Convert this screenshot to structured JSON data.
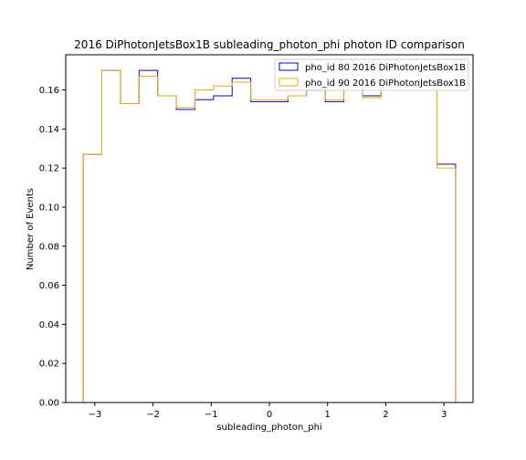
{
  "chart_data": {
    "type": "step-histogram",
    "title": "2016 DiPhotonJetsBox1B subleading_photon_phi photon ID comparison",
    "xlabel": "subleading_photon_phi",
    "ylabel": "Number of Events",
    "xlim": [
      -3.5,
      3.5
    ],
    "ylim": [
      0.0,
      0.178
    ],
    "xticks": [
      -3,
      -2,
      -1,
      0,
      1,
      2,
      3
    ],
    "xtick_labels": [
      "−3",
      "−2",
      "−1",
      "0",
      "1",
      "2",
      "3"
    ],
    "yticks": [
      0.0,
      0.02,
      0.04,
      0.06,
      0.08,
      0.1,
      0.12,
      0.14,
      0.16
    ],
    "ytick_labels": [
      "0.00",
      "0.02",
      "0.04",
      "0.06",
      "0.08",
      "0.10",
      "0.12",
      "0.14",
      "0.16"
    ],
    "bin_edges": [
      -3.2,
      -2.88,
      -2.56,
      -2.24,
      -1.92,
      -1.6,
      -1.28,
      -0.96,
      -0.64,
      -0.32,
      0.0,
      0.32,
      0.64,
      0.96,
      1.28,
      1.6,
      1.92,
      2.24,
      2.56,
      2.88,
      3.2
    ],
    "series": [
      {
        "name": "pho_id 80 2016 DiPhotonJetsBox1B",
        "color": "#0000cd",
        "values": [
          0.127,
          0.17,
          0.153,
          0.17,
          0.157,
          0.15,
          0.155,
          0.157,
          0.166,
          0.154,
          0.154,
          0.157,
          0.16,
          0.154,
          0.168,
          0.157,
          0.17,
          0.162,
          0.17,
          0.122
        ]
      },
      {
        "name": "pho_id 90 2016 DiPhotonJetsBox1B",
        "color": "#ffa500",
        "values": [
          0.127,
          0.17,
          0.153,
          0.167,
          0.157,
          0.151,
          0.16,
          0.162,
          0.164,
          0.155,
          0.155,
          0.157,
          0.161,
          0.155,
          0.168,
          0.156,
          0.17,
          0.162,
          0.17,
          0.12
        ]
      }
    ],
    "legend_position": "top-right",
    "grid": false
  }
}
